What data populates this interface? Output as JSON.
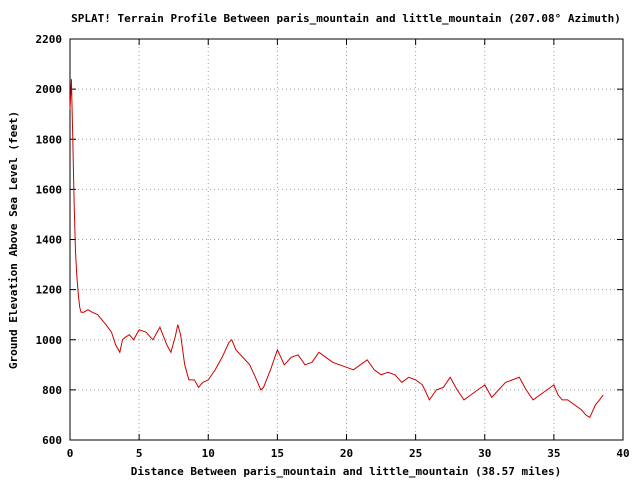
{
  "chart_data": {
    "type": "line",
    "title": "SPLAT! Terrain Profile Between paris_mountain and little_mountain (207.08° Azimuth)",
    "xlabel": "Distance Between paris_mountain and little_mountain (38.57 miles)",
    "ylabel": "Ground Elevation Above Sea Level (feet)",
    "xlim": [
      0,
      40
    ],
    "ylim": [
      600,
      2200
    ],
    "x_ticks": [
      0,
      5,
      10,
      15,
      20,
      25,
      30,
      35,
      40
    ],
    "y_ticks": [
      600,
      800,
      1000,
      1200,
      1400,
      1600,
      1800,
      2000,
      2200
    ],
    "grid": true,
    "line_color": "#cc0000",
    "series": [
      {
        "x": [
          0,
          0.1,
          0.2,
          0.3,
          0.4,
          0.5,
          0.6,
          0.7,
          0.8,
          1.0,
          1.3,
          1.6,
          2.0,
          2.3,
          2.6,
          3.0,
          3.3,
          3.6,
          3.8,
          4.0,
          4.3,
          4.6,
          5.0,
          5.5,
          6.0,
          6.5,
          7.0,
          7.3,
          7.6,
          7.8,
          8.0,
          8.3,
          8.6,
          9.0,
          9.3,
          9.6,
          10.0,
          10.5,
          11.0,
          11.5,
          11.7,
          12.0,
          12.5,
          13.0,
          13.5,
          13.8,
          14.0,
          14.5,
          15.0,
          15.5,
          16.0,
          16.5,
          17.0,
          17.5,
          18.0,
          18.5,
          19.0,
          19.5,
          20.0,
          20.5,
          21.0,
          21.5,
          22.0,
          22.5,
          23.0,
          23.5,
          24.0,
          24.5,
          25.0,
          25.5,
          26.0,
          26.5,
          27.0,
          27.5,
          28.0,
          28.5,
          29.0,
          29.5,
          30.0,
          30.5,
          31.0,
          31.5,
          32.0,
          32.5,
          33.0,
          33.5,
          34.0,
          34.5,
          35.0,
          35.3,
          35.6,
          36.0,
          36.5,
          37.0,
          37.3,
          37.6,
          38.0,
          38.3,
          38.57
        ],
        "values": [
          1920,
          2040,
          1800,
          1550,
          1350,
          1250,
          1180,
          1130,
          1110,
          1110,
          1120,
          1110,
          1100,
          1080,
          1060,
          1030,
          980,
          950,
          1000,
          1010,
          1020,
          1000,
          1040,
          1030,
          1000,
          1050,
          980,
          950,
          1010,
          1060,
          1020,
          900,
          840,
          840,
          810,
          830,
          840,
          880,
          930,
          990,
          1000,
          960,
          930,
          900,
          840,
          800,
          810,
          880,
          960,
          900,
          930,
          940,
          900,
          910,
          950,
          930,
          910,
          900,
          890,
          880,
          900,
          920,
          880,
          860,
          870,
          860,
          830,
          850,
          840,
          820,
          760,
          800,
          810,
          850,
          800,
          760,
          780,
          800,
          820,
          770,
          800,
          830,
          840,
          850,
          800,
          760,
          780,
          800,
          820,
          780,
          760,
          760,
          740,
          720,
          700,
          690,
          740,
          760,
          780
        ]
      }
    ]
  }
}
